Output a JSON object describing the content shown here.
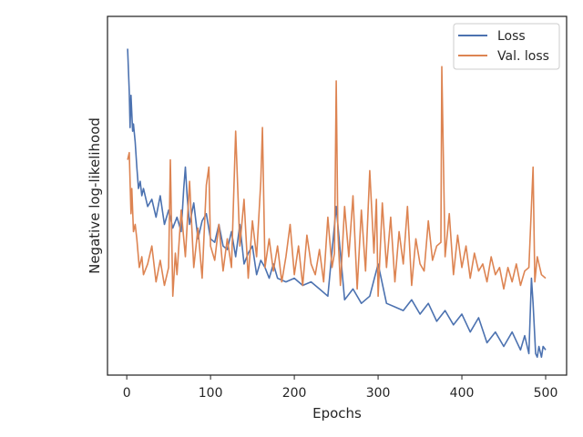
{
  "chart_data": {
    "type": "line",
    "xlabel": "Epochs",
    "ylabel": "Negative log-likelihood",
    "xlim": [
      -23,
      525
    ],
    "ylim": [
      0,
      1
    ],
    "x_ticks": [
      0,
      100,
      200,
      300,
      400,
      500
    ],
    "y_ticks_shown": false,
    "grid": false,
    "legend_position": "top-right",
    "series": [
      {
        "name": "Loss",
        "color": "#4c72b0",
        "x": [
          1,
          2,
          3,
          4,
          5,
          6,
          7,
          8,
          10,
          12,
          14,
          16,
          18,
          20,
          25,
          30,
          35,
          40,
          45,
          50,
          55,
          60,
          65,
          68,
          70,
          72,
          75,
          80,
          85,
          90,
          95,
          100,
          105,
          110,
          115,
          120,
          125,
          130,
          135,
          140,
          145,
          150,
          155,
          160,
          165,
          170,
          175,
          180,
          190,
          200,
          210,
          220,
          230,
          240,
          250,
          260,
          270,
          280,
          290,
          300,
          310,
          320,
          330,
          340,
          350,
          360,
          370,
          380,
          390,
          400,
          410,
          420,
          430,
          440,
          450,
          460,
          470,
          475,
          480,
          483,
          485,
          488,
          490,
          492,
          495,
          497,
          500
        ],
        "values": [
          0.91,
          0.85,
          0.79,
          0.69,
          0.78,
          0.73,
          0.68,
          0.7,
          0.65,
          0.58,
          0.52,
          0.54,
          0.5,
          0.52,
          0.47,
          0.49,
          0.44,
          0.5,
          0.42,
          0.46,
          0.41,
          0.44,
          0.4,
          0.52,
          0.58,
          0.5,
          0.42,
          0.48,
          0.38,
          0.43,
          0.45,
          0.38,
          0.37,
          0.42,
          0.36,
          0.35,
          0.4,
          0.33,
          0.42,
          0.31,
          0.34,
          0.36,
          0.28,
          0.32,
          0.3,
          0.27,
          0.31,
          0.27,
          0.26,
          0.27,
          0.25,
          0.26,
          0.24,
          0.22,
          0.47,
          0.21,
          0.24,
          0.2,
          0.22,
          0.31,
          0.2,
          0.19,
          0.18,
          0.21,
          0.17,
          0.2,
          0.15,
          0.18,
          0.14,
          0.17,
          0.12,
          0.16,
          0.09,
          0.12,
          0.08,
          0.12,
          0.07,
          0.11,
          0.06,
          0.27,
          0.2,
          0.06,
          0.05,
          0.08,
          0.05,
          0.08,
          0.07
        ]
      },
      {
        "name": "Val. loss",
        "color": "#dd8452",
        "x": [
          1,
          3,
          5,
          6,
          8,
          10,
          12,
          15,
          18,
          20,
          25,
          30,
          35,
          40,
          45,
          50,
          52,
          55,
          58,
          60,
          65,
          70,
          75,
          80,
          85,
          90,
          95,
          98,
          100,
          105,
          110,
          115,
          120,
          125,
          130,
          135,
          140,
          145,
          150,
          155,
          160,
          162,
          165,
          170,
          175,
          180,
          185,
          190,
          195,
          200,
          205,
          210,
          215,
          220,
          225,
          230,
          235,
          240,
          245,
          248,
          250,
          252,
          255,
          260,
          265,
          270,
          275,
          280,
          285,
          290,
          295,
          298,
          300,
          305,
          310,
          315,
          320,
          325,
          330,
          335,
          340,
          345,
          350,
          355,
          360,
          365,
          370,
          375,
          376,
          380,
          385,
          390,
          395,
          400,
          405,
          410,
          415,
          420,
          425,
          430,
          435,
          440,
          445,
          450,
          455,
          460,
          465,
          470,
          475,
          480,
          485,
          487,
          490,
          495,
          500
        ],
        "values": [
          0.6,
          0.62,
          0.45,
          0.52,
          0.4,
          0.42,
          0.38,
          0.3,
          0.33,
          0.28,
          0.31,
          0.36,
          0.26,
          0.32,
          0.25,
          0.3,
          0.6,
          0.22,
          0.34,
          0.28,
          0.46,
          0.33,
          0.54,
          0.3,
          0.41,
          0.27,
          0.53,
          0.58,
          0.36,
          0.32,
          0.42,
          0.29,
          0.38,
          0.3,
          0.68,
          0.36,
          0.49,
          0.27,
          0.43,
          0.33,
          0.54,
          0.69,
          0.3,
          0.38,
          0.29,
          0.36,
          0.26,
          0.33,
          0.42,
          0.28,
          0.36,
          0.25,
          0.39,
          0.31,
          0.28,
          0.35,
          0.26,
          0.44,
          0.3,
          0.34,
          0.82,
          0.4,
          0.25,
          0.47,
          0.33,
          0.5,
          0.24,
          0.46,
          0.29,
          0.57,
          0.34,
          0.49,
          0.22,
          0.48,
          0.3,
          0.44,
          0.26,
          0.4,
          0.31,
          0.47,
          0.25,
          0.38,
          0.31,
          0.29,
          0.43,
          0.32,
          0.36,
          0.37,
          0.86,
          0.33,
          0.45,
          0.28,
          0.39,
          0.3,
          0.36,
          0.27,
          0.34,
          0.29,
          0.31,
          0.26,
          0.33,
          0.28,
          0.3,
          0.24,
          0.3,
          0.26,
          0.31,
          0.25,
          0.29,
          0.3,
          0.58,
          0.26,
          0.33,
          0.28,
          0.27
        ]
      }
    ]
  }
}
